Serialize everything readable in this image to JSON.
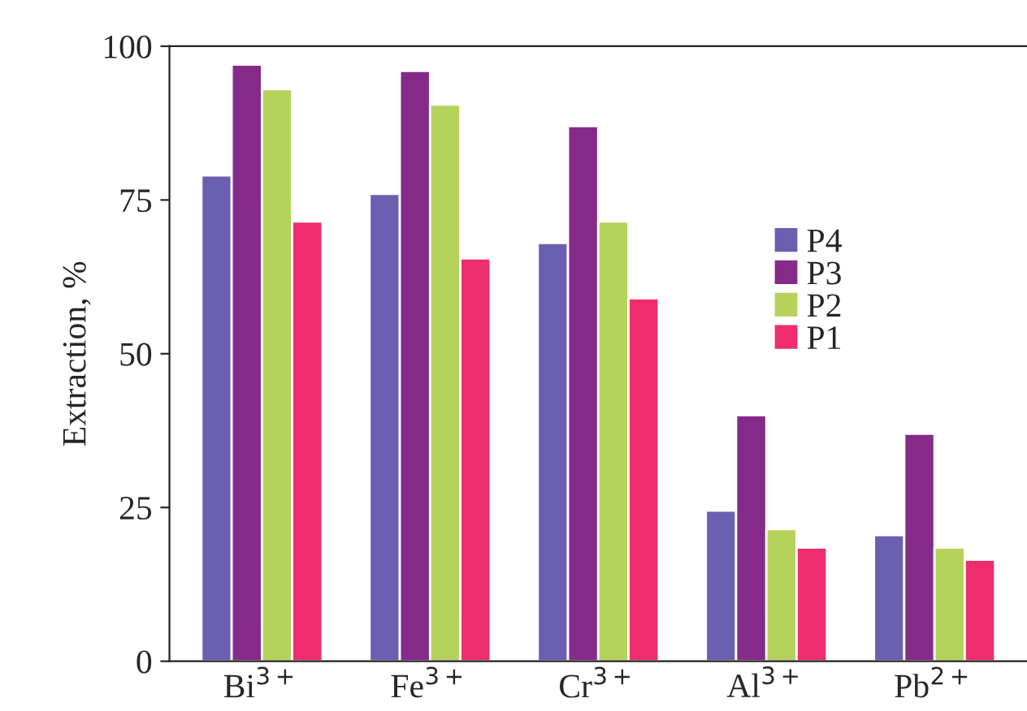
{
  "chart_data": {
    "type": "bar",
    "ylabel": "Extraction, %",
    "categories": [
      "Bi$^{3+}$",
      "Fe$^{3+}$",
      "Cr$^{3+}$",
      "Al$^{3+}$",
      "Pb$^{2+}$"
    ],
    "series": [
      {
        "name": "P4",
        "color": "#6a5fb0",
        "values": [
          79,
          76,
          68,
          24.5,
          20.5
        ]
      },
      {
        "name": "P3",
        "color": "#862a8a",
        "values": [
          97,
          96,
          87,
          40,
          37
        ]
      },
      {
        "name": "P2",
        "color": "#b5d35a",
        "values": [
          93,
          90.5,
          71.5,
          21.5,
          18.5
        ]
      },
      {
        "name": "P1",
        "color": "#ee2d6e",
        "values": [
          71.5,
          65.5,
          59,
          18.5,
          16.5
        ]
      }
    ],
    "ylim": [
      0,
      100
    ],
    "yticks": [
      0,
      25,
      50,
      75,
      100
    ],
    "grid": false,
    "legend": "right"
  }
}
